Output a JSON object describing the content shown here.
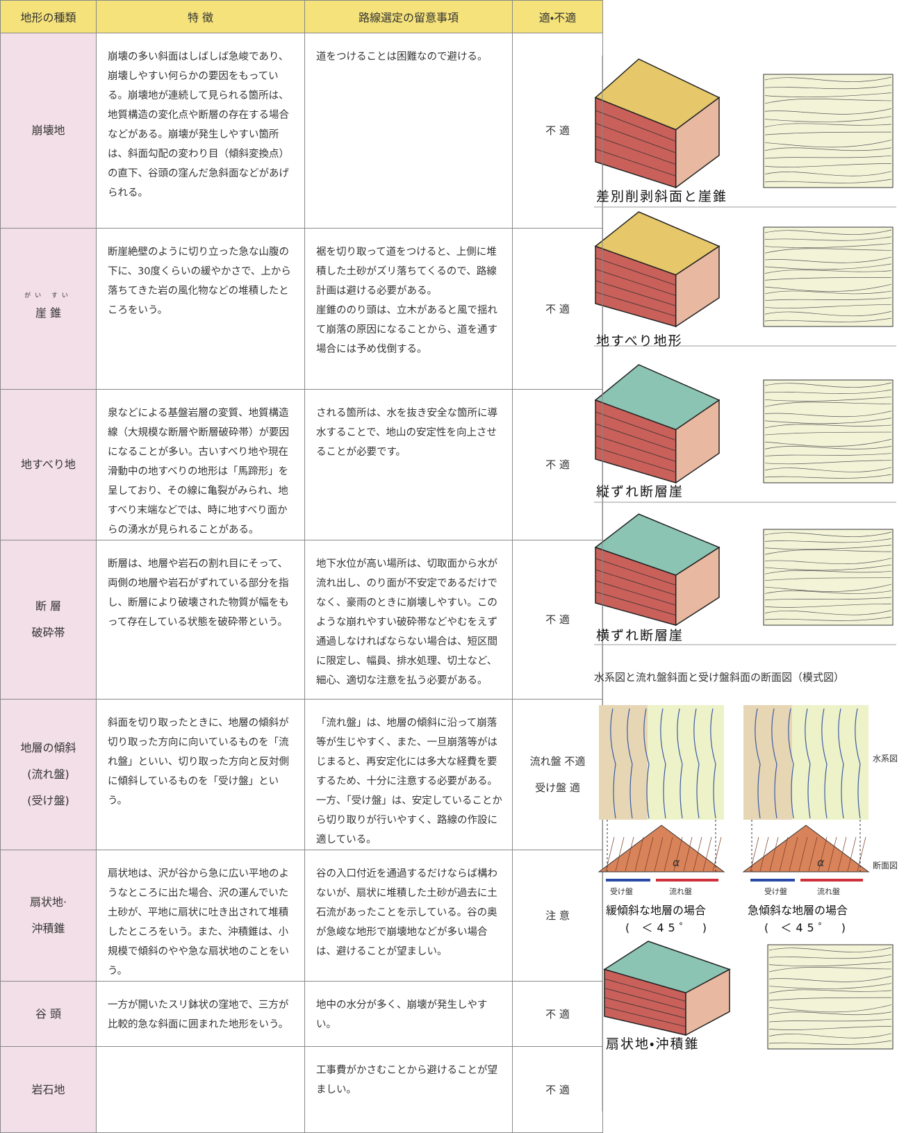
{
  "table": {
    "header": [
      "地形の種類",
      "特 徴",
      "路線選定の留意事項",
      "適・不適"
    ],
    "rows": [
      {
        "name": [
          "崩壊地"
        ],
        "feature": [
          "崩壊の多い斜面はしばしば急峻であり、崩壊しやすい何らかの要因をもっている。崩壊地が連続して見られる箇所は、地質構造の変化点や断層の存在する場合などがある。崩壊が発生しやすい箇所は、斜面勾配の変わり目（傾斜変換点）の直下、谷頭の窪んだ急斜面などがあげられる。"
        ],
        "note": [
          "道をつけることは困難なので避ける。"
        ],
        "suitability": [
          "不 適"
        ]
      },
      {
        "ruby": "がい すい",
        "name": [
          "崖 錐"
        ],
        "feature": [
          "断崖絶壁のように切り立った急な山腹の下に、30度くらいの緩やかさで、上から落ちてきた岩の風化物などの堆積したところをいう。"
        ],
        "note": [
          "裾を切り取って道をつけると、上側に堆積した土砂がズリ落ちてくるので、路線計画は避ける必要がある。",
          "崖錐ののり頭は、立木があると風で揺れて崩落の原因になることから、道を通す場合には予め伐倒する。"
        ],
        "suitability": [
          "不 適"
        ]
      },
      {
        "name": [
          "地すべり地"
        ],
        "feature": [
          "泉などによる基盤岩層の変質、地質構造線（大規模な断層や断層破砕帯）が要因になることが多い。古いすべり地や現在滑動中の地すべりの地形は「馬蹄形」を呈しており、その線に亀裂がみられ、地すべり末端などでは、時に地すべり面からの湧水が見られることがある。"
        ],
        "note": [
          "される箇所は、水を抜き安全な箇所に導水することで、地山の安定性を向上させることが必要です。"
        ],
        "suitability": [
          "不 適"
        ]
      },
      {
        "name": [
          "断 層",
          "破砕帯"
        ],
        "feature": [
          "断層は、地層や岩石の割れ目にそって、両側の地層や岩石がずれている部分を指し、断層により破壊された物質が幅をもって存在している状態を破砕帯という。"
        ],
        "note": [
          "地下水位が高い場所は、切取面から水が流れ出し、のり面が不安定であるだけでなく、豪雨のときに崩壊しやすい。このような崩れやすい破砕帯などやむをえず通過しなければならない場合は、短区間に限定し、幅員、排水処理、切土など、細心、適切な注意を払う必要がある。"
        ],
        "suitability": [
          "不 適"
        ]
      },
      {
        "name": [
          "地層の傾斜",
          "(流れ盤)",
          "(受け盤)"
        ],
        "feature": [
          "斜面を切り取ったときに、地層の傾斜が切り取った方向に向いているものを「流れ盤」といい、切り取った方向と反対側に傾斜しているものを「受け盤」という。"
        ],
        "note": [
          "「流れ盤」は、地層の傾斜に沿って崩落等が生じやすく、また、一旦崩落等がはじまると、再安定化には多大な経費を要するため、十分に注意する必要がある。一方、「受け盤」は、安定していることから切り取りが行いやすく、路線の作設に適している。"
        ],
        "suitability": [
          "流れ盤 不適",
          "受け盤 適"
        ]
      },
      {
        "name": [
          "扇状地·",
          "沖積錐"
        ],
        "feature": [
          "扇状地は、沢が谷から急に広い平地のようなところに出た場合、沢の運んでいた土砂が、平地に扇状に吐き出されて堆積したところをいう。また、沖積錐は、小規模で傾斜のやや急な扇状地のことをいう。"
        ],
        "note": [
          "谷の入口付近を通過するだけならば構わないが、扇状に堆積した土砂が過去に土石流があったことを示している。谷の奥が急峻な地形で崩壊地などが多い場合は、避けることが望ましい。"
        ],
        "suitability": [
          "注 意"
        ]
      },
      {
        "name": [
          "谷 頭"
        ],
        "feature": [
          "一方が開いたスリ鉢状の窪地で、三方が比較的急な斜面に囲まれた地形をいう。"
        ],
        "note": [
          "地中の水分が多く、崩壊が発生しやすい。"
        ],
        "suitability": [
          "不 適"
        ]
      },
      {
        "name": [
          "岩石地"
        ],
        "note": [
          "工事費がかさむことから避けることが望ましい。"
        ],
        "suitability": [
          "不 適"
        ]
      }
    ]
  },
  "figures": {
    "block_captions": [
      "差別削剥斜面と崖錐",
      "地すべり地形",
      "縦ずれ断層崖",
      "横ずれ断層崖"
    ],
    "water_system": {
      "title": "水系図と流れ盤斜面と受け盤斜面の断面図（模式図）",
      "plan_label": "水系図",
      "section_label": "断面図",
      "panels": [
        {
          "caption": "緩傾斜な地層の場合",
          "condition": "( ＜45゜ )",
          "dip_label": "α",
          "bar_labels": [
            "受け盤",
            "流れ盤"
          ]
        },
        {
          "caption": "急傾斜な地層の場合",
          "condition": "( ＜45゜ )",
          "dip_label": "α",
          "bar_labels": [
            "受け盤",
            "流れ盤"
          ]
        }
      ]
    },
    "fan_caption": "扇状地・沖積錐"
  }
}
